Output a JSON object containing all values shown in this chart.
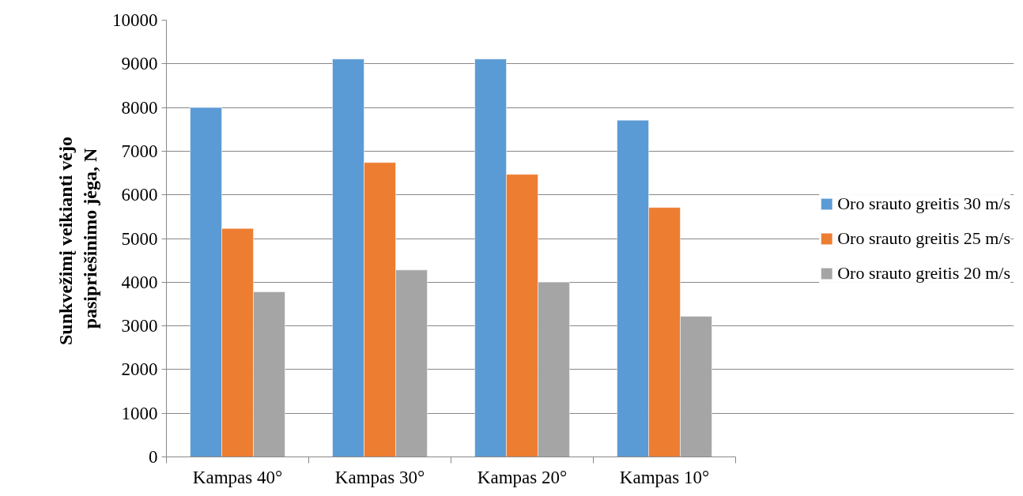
{
  "chart_data": {
    "type": "bar",
    "ylabel": "Sunkvežimį veikianti  vėjo pasipriešinimo jėga, N",
    "categories": [
      "Kampas 40°",
      "Kampas 30°",
      "Kampas 20°",
      "Kampas 10°"
    ],
    "series": [
      {
        "name": "Oro srauto greitis 30 m/s",
        "color": "#5b9bd5",
        "values": [
          8000,
          9110,
          9110,
          7710
        ]
      },
      {
        "name": "Oro srauto greitis 25 m/s",
        "color": "#ed7d31",
        "values": [
          5230,
          6740,
          6470,
          5710
        ]
      },
      {
        "name": "Oro srauto greitis 20 m/s",
        "color": "#a5a5a5",
        "values": [
          3780,
          4280,
          4000,
          3220
        ]
      }
    ],
    "ylim": [
      0,
      10000
    ],
    "yticks": [
      0,
      1000,
      2000,
      3000,
      4000,
      5000,
      6000,
      7000,
      8000,
      9000,
      10000
    ],
    "grid": "y",
    "legend": "right"
  }
}
